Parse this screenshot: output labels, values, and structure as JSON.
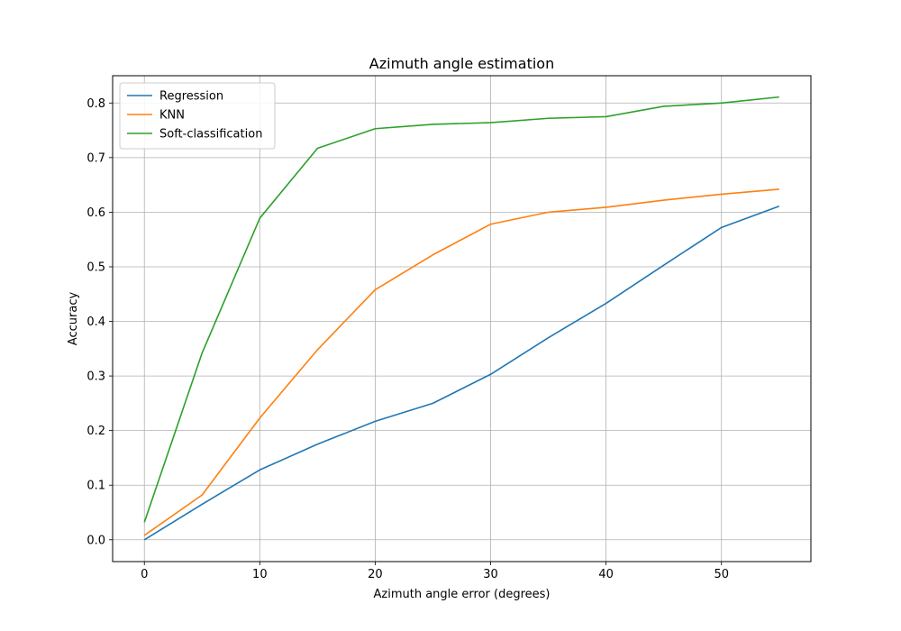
{
  "chart_data": {
    "type": "line",
    "title": "Azimuth angle estimation",
    "xlabel": "Azimuth angle error (degrees)",
    "ylabel": "Accuracy",
    "xlim": [
      -2.75,
      57.75
    ],
    "ylim": [
      -0.04,
      0.85
    ],
    "xticks": [
      0,
      10,
      20,
      30,
      40,
      50
    ],
    "xtick_labels": [
      "0",
      "10",
      "20",
      "30",
      "40",
      "50"
    ],
    "yticks": [
      0.0,
      0.1,
      0.2,
      0.3,
      0.4,
      0.5,
      0.6,
      0.7,
      0.8
    ],
    "ytick_labels": [
      "0.0",
      "0.1",
      "0.2",
      "0.3",
      "0.4",
      "0.5",
      "0.6",
      "0.7",
      "0.8"
    ],
    "grid": true,
    "legend_position": "upper-left",
    "x": [
      0,
      5,
      10,
      15,
      20,
      25,
      30,
      35,
      40,
      45,
      50,
      55
    ],
    "series": [
      {
        "name": "Regression",
        "color": "#1f77b4",
        "values": [
          0.0,
          0.065,
          0.128,
          0.175,
          0.217,
          0.25,
          0.303,
          0.37,
          0.433,
          0.503,
          0.572,
          0.611
        ]
      },
      {
        "name": "KNN",
        "color": "#ff7f0e",
        "values": [
          0.008,
          0.082,
          0.223,
          0.348,
          0.458,
          0.522,
          0.578,
          0.6,
          0.609,
          0.622,
          0.633,
          0.642
        ]
      },
      {
        "name": "Soft-classification",
        "color": "#2ca02c",
        "values": [
          0.032,
          0.342,
          0.589,
          0.717,
          0.753,
          0.761,
          0.764,
          0.772,
          0.775,
          0.794,
          0.8,
          0.811
        ]
      }
    ]
  }
}
